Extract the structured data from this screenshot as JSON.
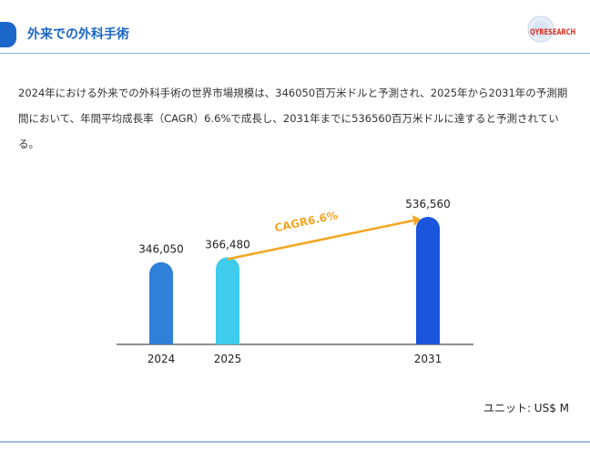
{
  "header": {
    "title": "外来での外科手術",
    "logo": "QYRESEARCH"
  },
  "description": "2024年における外来での外科手術の世界市場規模は、346050百万米ドルと予測され、2025年から2031年の予測期間において、年間平均成長率（CAGR）6.6%で成長し、2031年までに536560百万米ドルに達すると予測されている。",
  "chart_data": {
    "type": "bar",
    "categories": [
      "2024",
      "2025",
      "2031"
    ],
    "values": [
      346050,
      366480,
      536560
    ],
    "value_labels": [
      "346,050",
      "366,480",
      "536,560"
    ],
    "colors": [
      "#2f80d8",
      "#3ecbec",
      "#1a55dc"
    ],
    "annotation": "CAGR6.6%",
    "annotation_color": "#f5a623",
    "unit": "ユニット: US$ M"
  }
}
